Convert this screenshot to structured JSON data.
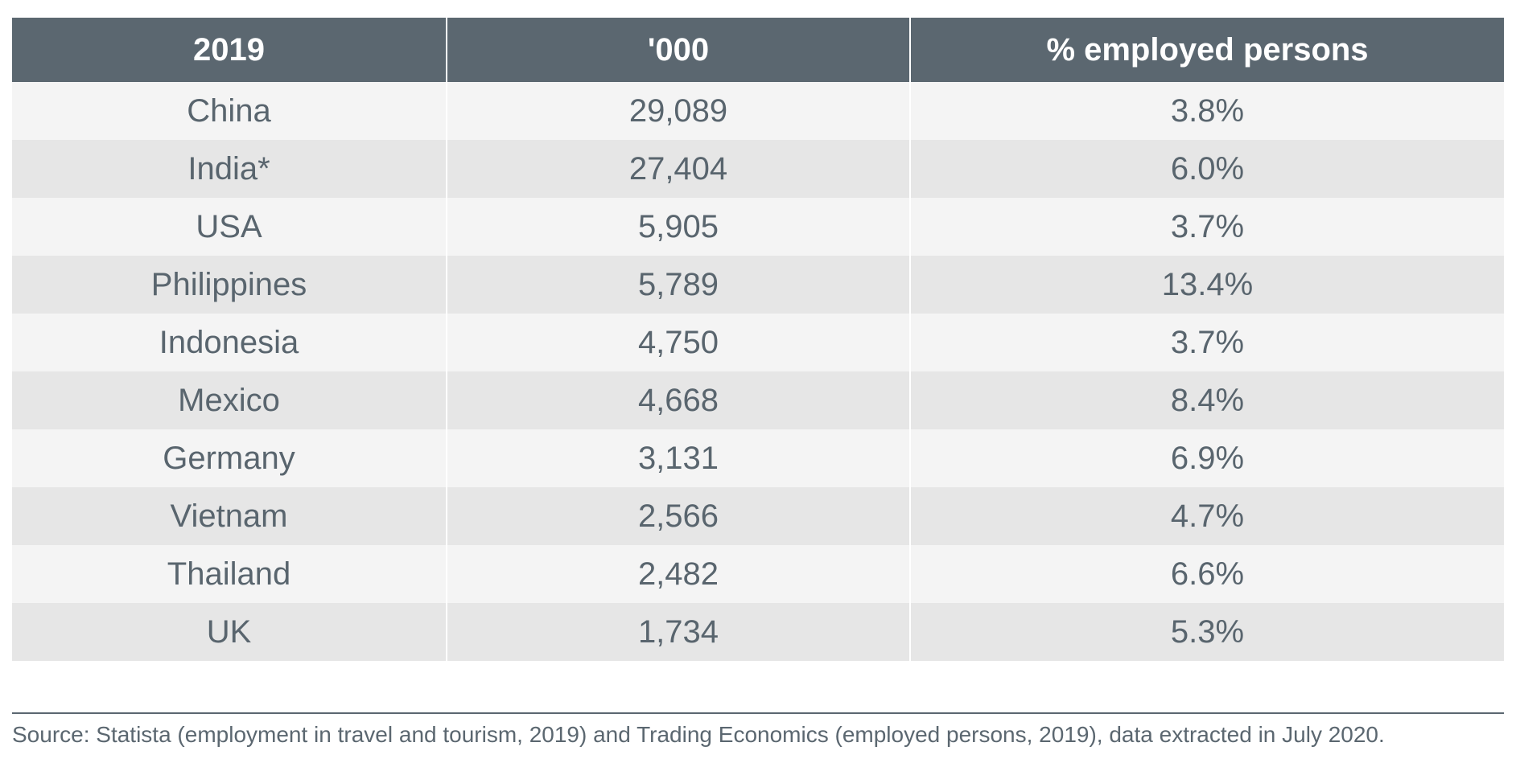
{
  "chart_data": {
    "type": "table",
    "columns": [
      "2019",
      "'000",
      "% employed persons"
    ],
    "rows": [
      {
        "country": "China",
        "thousands": "29,089",
        "pct": "3.8%"
      },
      {
        "country": "India*",
        "thousands": "27,404",
        "pct": "6.0%"
      },
      {
        "country": "USA",
        "thousands": "5,905",
        "pct": "3.7%"
      },
      {
        "country": "Philippines",
        "thousands": "5,789",
        "pct": "13.4%"
      },
      {
        "country": "Indonesia",
        "thousands": "4,750",
        "pct": "3.7%"
      },
      {
        "country": "Mexico",
        "thousands": "4,668",
        "pct": "8.4%"
      },
      {
        "country": "Germany",
        "thousands": "3,131",
        "pct": "6.9%"
      },
      {
        "country": "Vietnam",
        "thousands": "2,566",
        "pct": "4.7%"
      },
      {
        "country": "Thailand",
        "thousands": "2,482",
        "pct": "6.6%"
      },
      {
        "country": "UK",
        "thousands": "1,734",
        "pct": "5.3%"
      }
    ]
  },
  "source": "Source: Statista (employment in travel and tourism, 2019) and Trading Economics (employed persons, 2019), data extracted in July 2020.",
  "colors": {
    "header_bg": "#5b6770",
    "row_light": "#f4f4f4",
    "row_dark": "#e6e6e6",
    "text": "#59656e"
  }
}
